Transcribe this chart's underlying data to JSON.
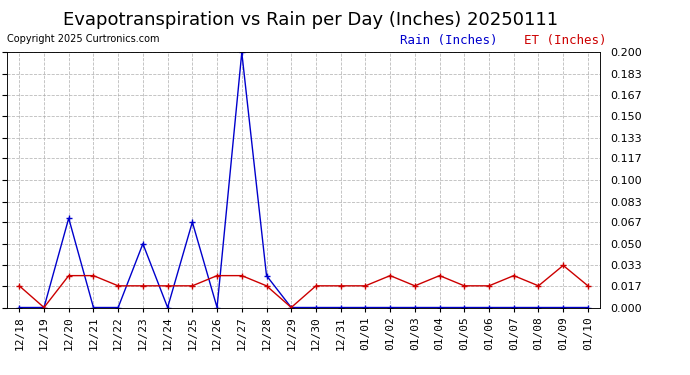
{
  "title": "Evapotranspiration vs Rain per Day (Inches) 20250111",
  "copyright": "Copyright 2025 Curtronics.com",
  "legend_rain": "Rain (Inches)",
  "legend_et": "ET (Inches)",
  "dates": [
    "12/18",
    "12/19",
    "12/20",
    "12/21",
    "12/22",
    "12/23",
    "12/24",
    "12/25",
    "12/26",
    "12/27",
    "12/28",
    "12/29",
    "12/30",
    "12/31",
    "01/01",
    "01/02",
    "01/03",
    "01/04",
    "01/05",
    "01/06",
    "01/07",
    "01/08",
    "01/09",
    "01/10"
  ],
  "rain": [
    0.0,
    0.0,
    0.07,
    0.0,
    0.0,
    0.05,
    0.0,
    0.067,
    0.0,
    0.2,
    0.025,
    0.0,
    0.0,
    0.0,
    0.0,
    0.0,
    0.0,
    0.0,
    0.0,
    0.0,
    0.0,
    0.0,
    0.0,
    0.0
  ],
  "et": [
    0.017,
    0.0,
    0.025,
    0.025,
    0.017,
    0.017,
    0.017,
    0.017,
    0.025,
    0.025,
    0.017,
    0.0,
    0.017,
    0.017,
    0.017,
    0.025,
    0.017,
    0.025,
    0.017,
    0.017,
    0.025,
    0.017,
    0.033,
    0.017
  ],
  "rain_color": "#0000cc",
  "et_color": "#cc0000",
  "ylim": [
    0.0,
    0.2
  ],
  "yticks": [
    0.0,
    0.017,
    0.033,
    0.05,
    0.067,
    0.083,
    0.1,
    0.117,
    0.133,
    0.15,
    0.167,
    0.183,
    0.2
  ],
  "background_color": "#ffffff",
  "grid_color": "#aaaaaa",
  "title_fontsize": 13,
  "tick_fontsize": 8,
  "copyright_fontsize": 7,
  "legend_fontsize": 9,
  "fig_width": 6.9,
  "fig_height": 3.75,
  "fig_dpi": 100
}
